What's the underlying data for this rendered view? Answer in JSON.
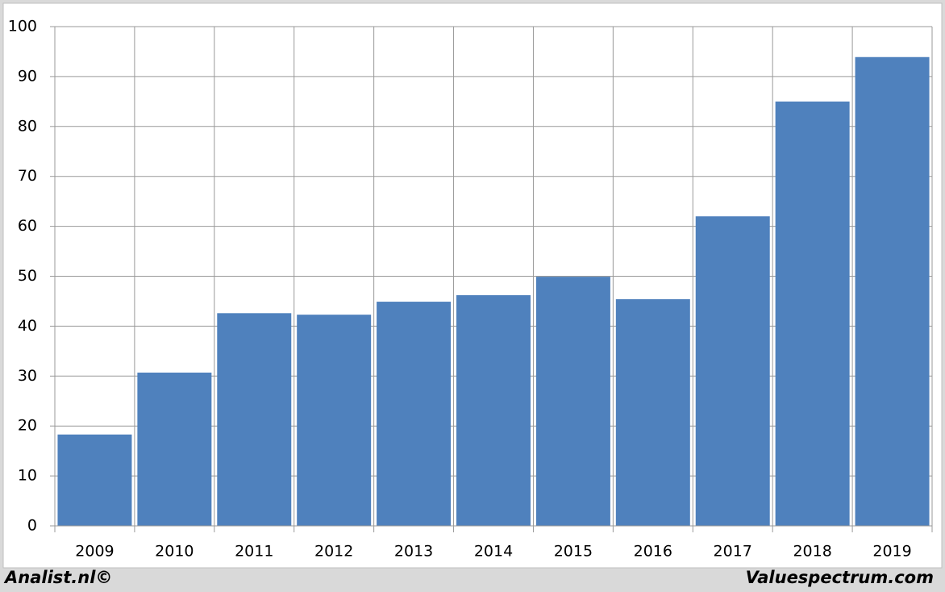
{
  "chart_data": {
    "type": "bar",
    "categories": [
      "2009",
      "2010",
      "2011",
      "2012",
      "2013",
      "2014",
      "2015",
      "2016",
      "2017",
      "2018",
      "2019"
    ],
    "values": [
      18.3,
      30.7,
      42.6,
      42.3,
      44.9,
      46.2,
      49.9,
      45.4,
      62,
      85,
      93.9
    ],
    "color": "#4f81bd",
    "ylim": [
      0,
      100
    ],
    "yticks": [
      0,
      10,
      20,
      30,
      40,
      50,
      60,
      70,
      80,
      90,
      100
    ],
    "grid": true
  },
  "footer": {
    "left": "Analist.nl©",
    "right": "Valuespectrum.com"
  }
}
